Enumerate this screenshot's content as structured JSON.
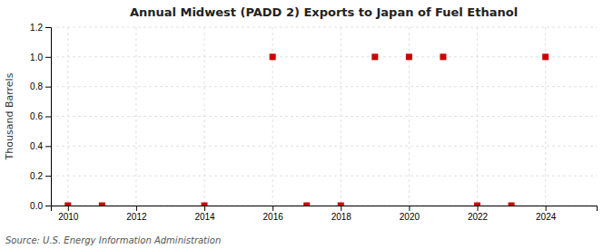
{
  "chart_data": {
    "type": "scatter",
    "title": "Annual Midwest (PADD 2) Exports to Japan of Fuel Ethanol",
    "ylabel": "Thousand Barrels",
    "annotation": "Source: U.S. Energy Information Administration",
    "x": [
      2010,
      2011,
      2012,
      2013,
      2014,
      2015,
      2016,
      2017,
      2018,
      2019,
      2020,
      2021,
      2022,
      2023,
      2024
    ],
    "values": [
      0,
      0,
      null,
      null,
      0,
      null,
      1,
      0,
      0,
      1,
      1,
      1,
      0,
      0,
      1
    ],
    "color": "#cc0000",
    "marker": "square",
    "xlim": [
      2009.5,
      2025.5
    ],
    "xticks": [
      2010,
      2012,
      2014,
      2016,
      2018,
      2020,
      2022,
      2024
    ],
    "ylim": [
      0.0,
      1.2
    ],
    "yticks": [
      {
        "value": 0,
        "label": "0.0"
      },
      0.2,
      0.4,
      0.6,
      0.8,
      {
        "value": 1,
        "label": "1.0"
      },
      1.2
    ],
    "grid": true
  }
}
